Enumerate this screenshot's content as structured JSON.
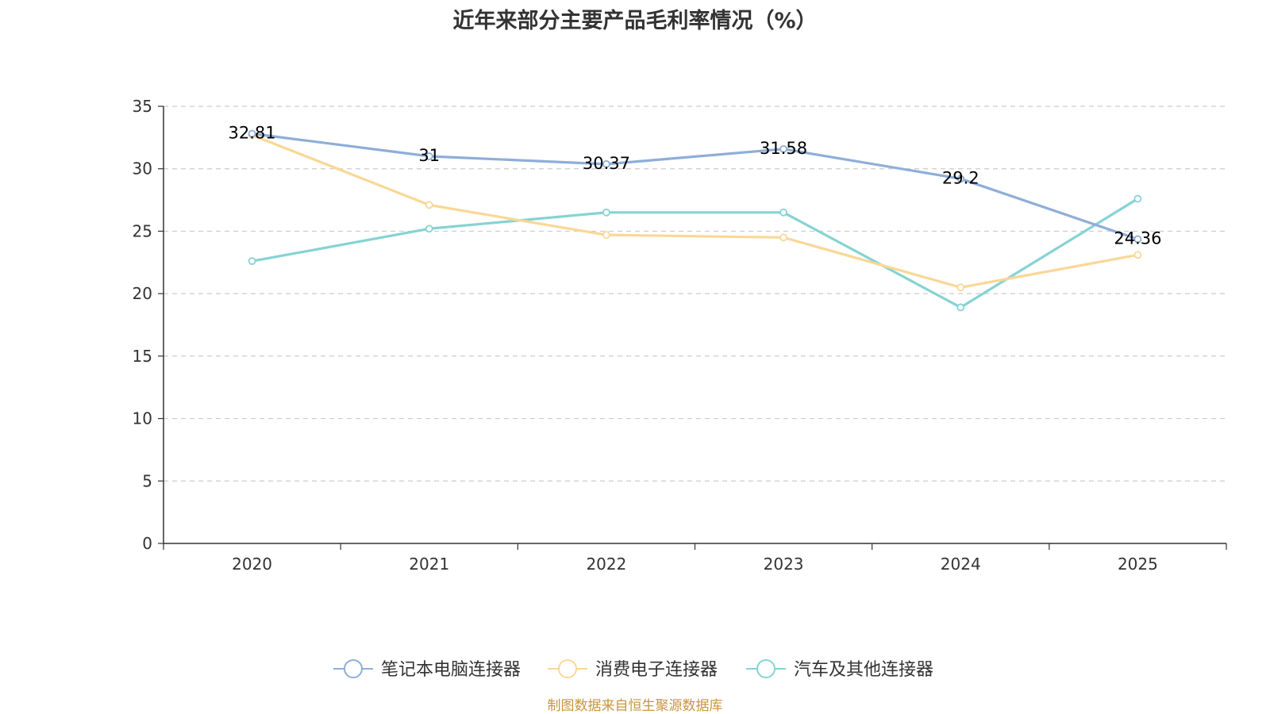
{
  "chart_data": {
    "type": "line",
    "title": "近年来部分主要产品毛利率情况（%）",
    "categories": [
      "2020",
      "2021",
      "2022",
      "2023",
      "2024",
      "2025"
    ],
    "ylim": [
      0,
      35
    ],
    "yticks": [
      0,
      5,
      10,
      15,
      20,
      25,
      30,
      35
    ],
    "grid": true,
    "legend_position": "bottom",
    "series": [
      {
        "name": "笔记本电脑连接器",
        "color": "#8eaed8",
        "values": [
          32.81,
          31,
          30.37,
          31.58,
          29.2,
          24.36
        ],
        "labels": [
          "32.81",
          "31",
          "30.37",
          "31.58",
          "29.2",
          "24.36"
        ]
      },
      {
        "name": "消费电子连接器",
        "color": "#fad797",
        "values": [
          32.7,
          27.1,
          24.7,
          24.5,
          20.5,
          23.1
        ]
      },
      {
        "name": "汽车及其他连接器",
        "color": "#86d3d3",
        "values": [
          22.6,
          25.2,
          26.5,
          26.5,
          18.9,
          27.6
        ]
      }
    ]
  },
  "footer": {
    "source": "制图数据来自恒生聚源数据库"
  }
}
